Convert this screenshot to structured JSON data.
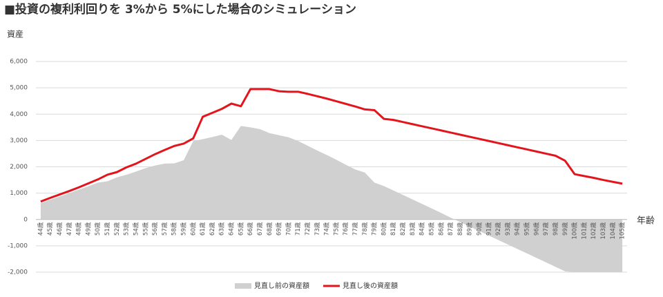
{
  "chart_data": {
    "type": "line",
    "title": "■投資の複利利回りを 3%から 5%にした場合のシミュレーション",
    "y_label": "資産",
    "x_label": "年齢",
    "categories": [
      "44歳",
      "45歳",
      "46歳",
      "47歳",
      "48歳",
      "49歳",
      "50歳",
      "51歳",
      "52歳",
      "53歳",
      "54歳",
      "55歳",
      "56歳",
      "57歳",
      "58歳",
      "59歳",
      "60歳",
      "61歳",
      "62歳",
      "63歳",
      "64歳",
      "65歳",
      "66歳",
      "67歳",
      "68歳",
      "69歳",
      "70歳",
      "71歳",
      "72歳",
      "73歳",
      "74歳",
      "75歳",
      "76歳",
      "77歳",
      "78歳",
      "79歳",
      "80歳",
      "81歳",
      "82歳",
      "83歳",
      "84歳",
      "85歳",
      "86歳",
      "87歳",
      "88歳",
      "89歳",
      "90歳",
      "91歳",
      "92歳",
      "93歳",
      "94歳",
      "95歳",
      "96歳",
      "97歳",
      "98歳",
      "99歳",
      "100歳",
      "101歳",
      "102歳",
      "103歳",
      "104歳",
      "105歳"
    ],
    "series": [
      {
        "name": "見直し前の資産額",
        "type": "area",
        "color": "#d0d0d0",
        "values": [
          620,
          750,
          870,
          1000,
          1130,
          1260,
          1400,
          1450,
          1600,
          1700,
          1820,
          1950,
          2050,
          2120,
          2130,
          2250,
          2980,
          3050,
          3130,
          3220,
          3020,
          3550,
          3500,
          3430,
          3280,
          3200,
          3120,
          2980,
          2800,
          2620,
          2450,
          2270,
          2080,
          1900,
          1780,
          1400,
          1270,
          1100,
          930,
          760,
          590,
          420,
          250,
          70,
          -100,
          -270,
          -440,
          -610,
          -780,
          -950,
          -1120,
          -1290,
          -1460,
          -1630,
          -1800,
          -1970,
          -2000,
          -2000,
          -2000,
          -2000,
          -2000,
          -2000
        ]
      },
      {
        "name": "見直し後の資産額",
        "type": "line",
        "color": "#e3141c",
        "values": [
          680,
          820,
          950,
          1080,
          1220,
          1370,
          1520,
          1700,
          1800,
          1980,
          2120,
          2300,
          2480,
          2640,
          2790,
          2880,
          3080,
          3900,
          4050,
          4200,
          4400,
          4300,
          4950,
          4950,
          4950,
          4870,
          4850,
          4850,
          4770,
          4680,
          4590,
          4490,
          4390,
          4290,
          4180,
          4150,
          3820,
          3780,
          3700,
          3620,
          3540,
          3460,
          3380,
          3300,
          3220,
          3140,
          3060,
          2980,
          2900,
          2820,
          2740,
          2660,
          2580,
          2500,
          2420,
          2230,
          1720,
          1650,
          1580,
          1500,
          1430,
          1360
        ]
      }
    ],
    "ylim": [
      -2000,
      6000
    ],
    "yticks": [
      {
        "value": -2000,
        "label": "-2,000"
      },
      {
        "value": -1000,
        "label": "-1,000"
      },
      0,
      {
        "value": 1000,
        "label": "1,000"
      },
      {
        "value": 2000,
        "label": "2,000"
      },
      {
        "value": 3000,
        "label": "3,000"
      },
      {
        "value": 4000,
        "label": "4,000"
      },
      {
        "value": 5000,
        "label": "5,000"
      },
      {
        "value": 6000,
        "label": "6,000"
      }
    ],
    "grid": true
  }
}
